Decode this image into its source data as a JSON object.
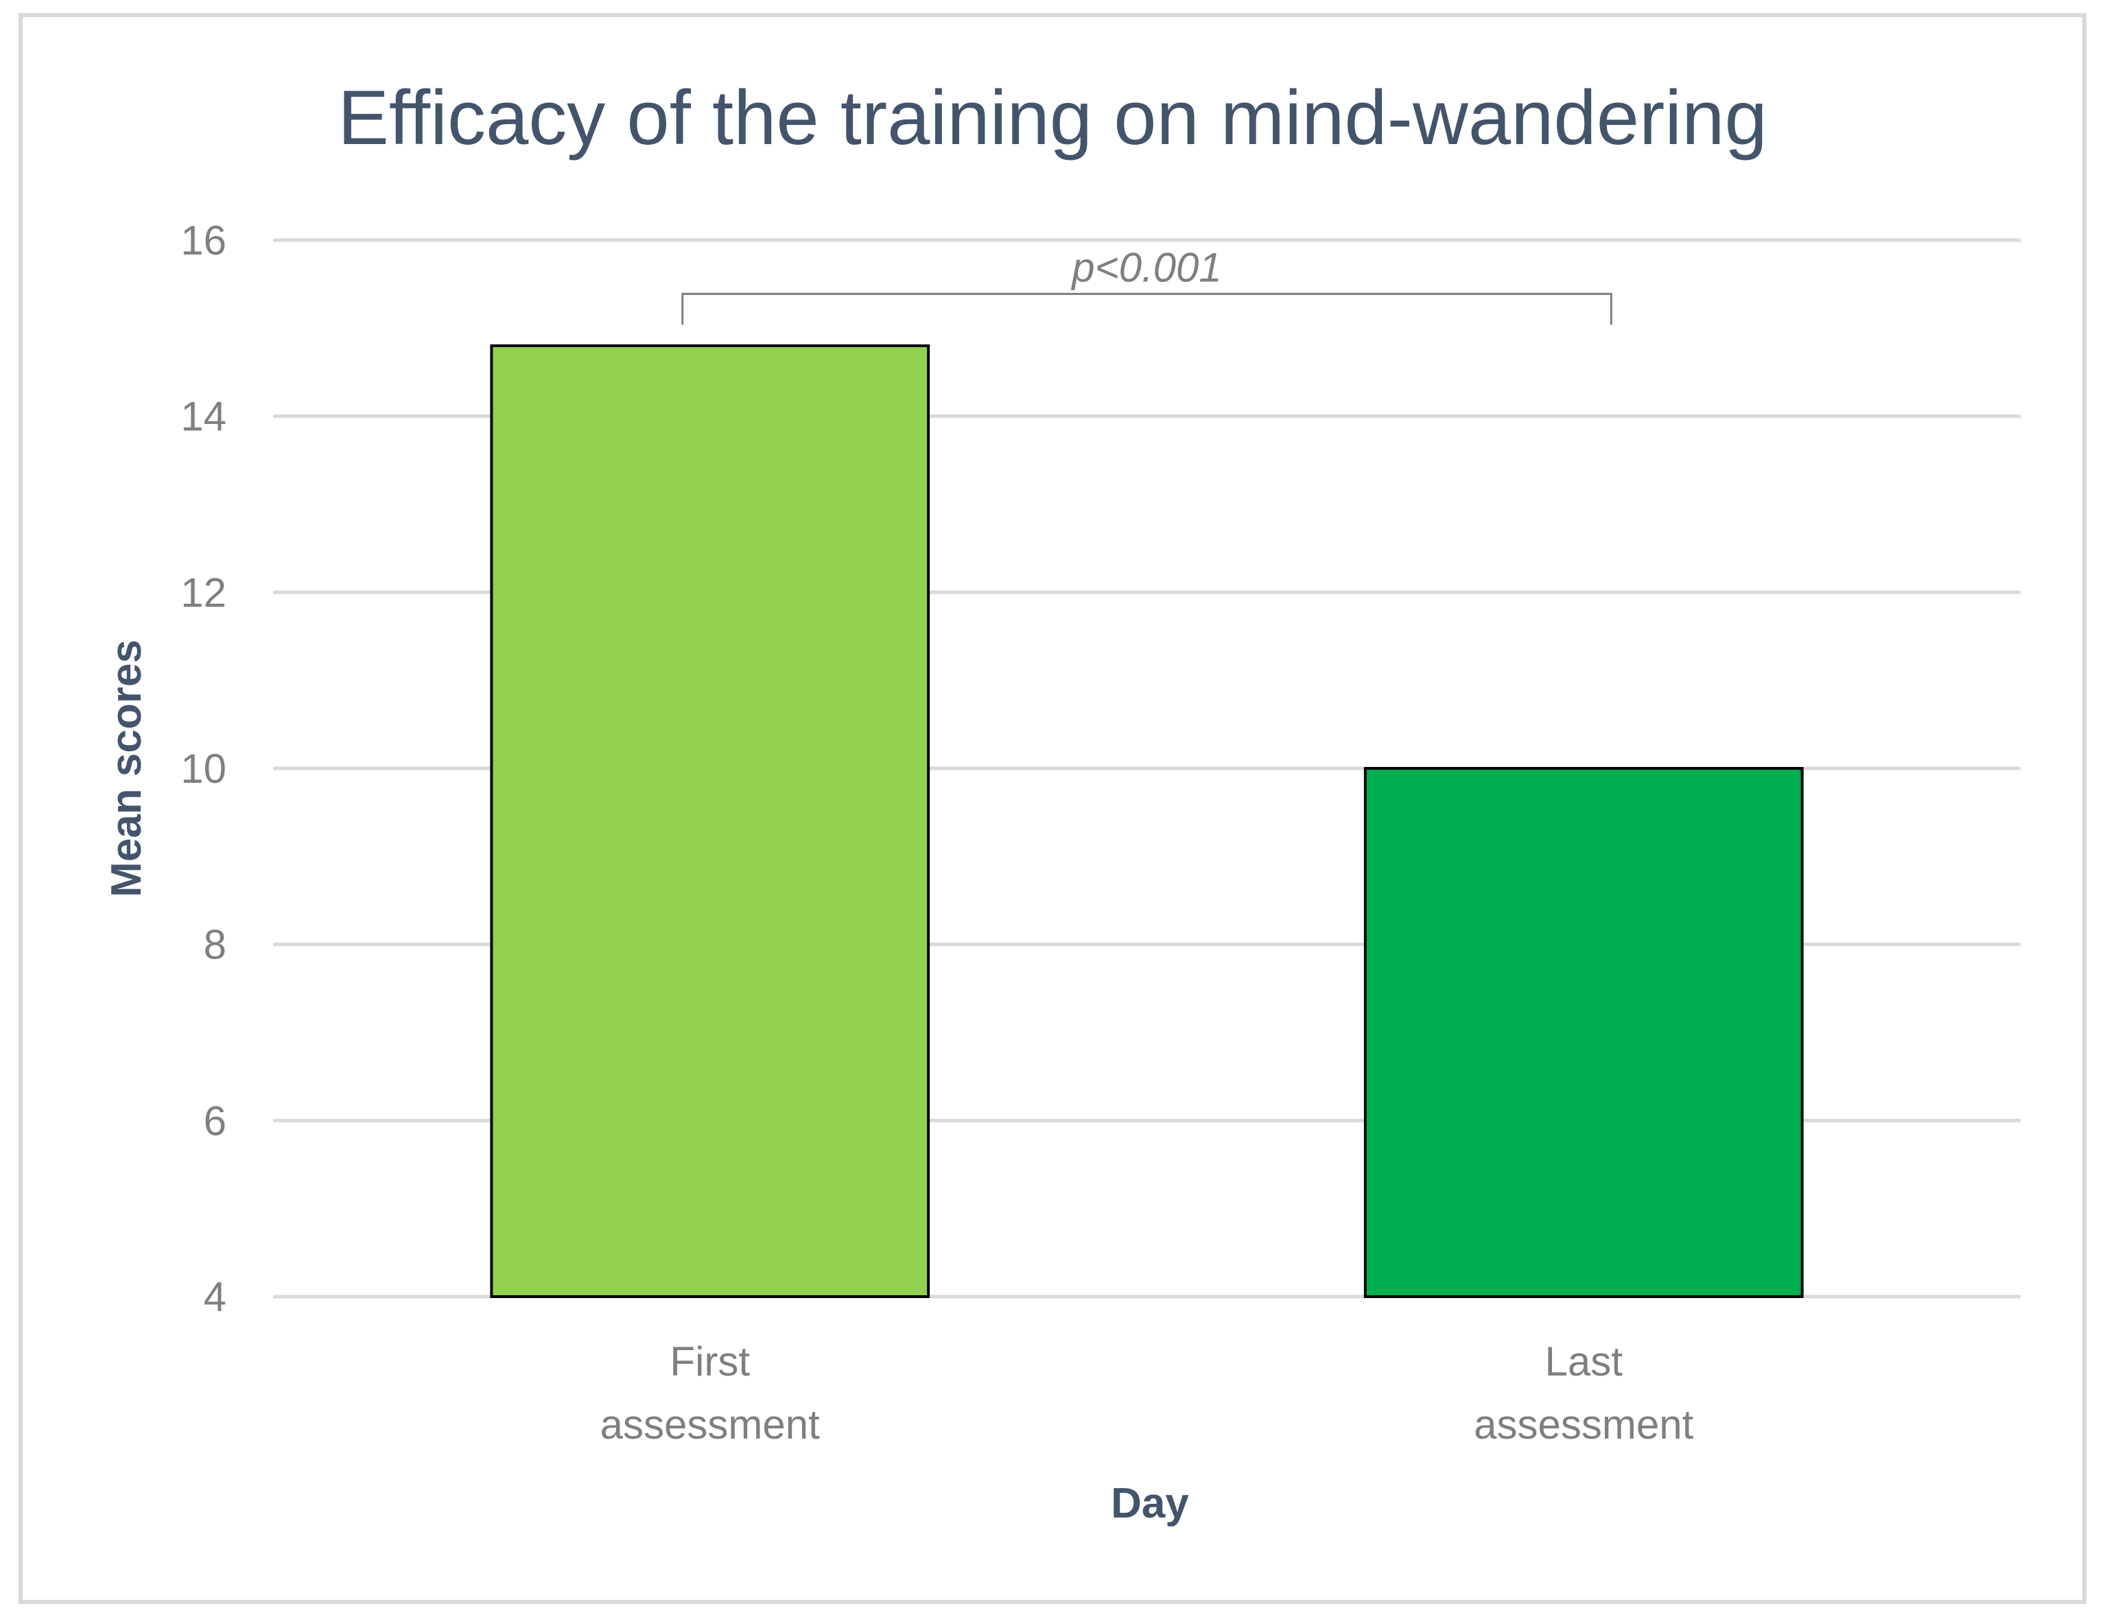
{
  "chart_data": {
    "type": "bar",
    "title": "Efficacy of the training on mind-wandering",
    "xlabel": "Day",
    "ylabel": "Mean scores",
    "categories": [
      [
        "First",
        "assessment"
      ],
      [
        "Last",
        "assessment"
      ]
    ],
    "values": [
      14.8,
      10.0
    ],
    "bar_colors": [
      "#92D050",
      "#00B050"
    ],
    "ylim": [
      4,
      16
    ],
    "yticks": [
      "4",
      "6",
      "8",
      "10",
      "12",
      "14",
      "16"
    ],
    "grid": true,
    "legend": "none",
    "annotation": {
      "text": "p<0.001",
      "bracket_y": 15.0
    },
    "colors": {
      "title": "#44546A",
      "axis_label": "#44546A",
      "tick": "#7F7F7F",
      "gridline": "#D9D9D9",
      "frame": "#D9D9D9",
      "bar_outline": "#000000"
    }
  }
}
